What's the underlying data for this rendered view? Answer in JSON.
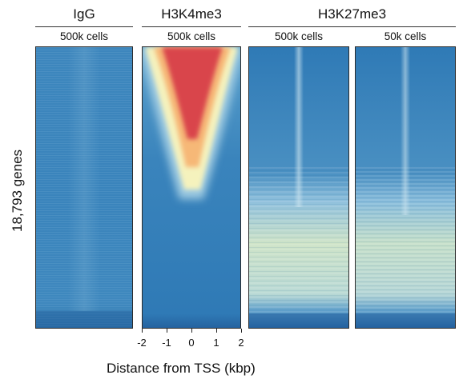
{
  "chart_data": {
    "type": "heatmap",
    "ylabel": "18,793 genes",
    "xlabel": "Distance from TSS (kbp)",
    "xticks": [
      "-2",
      "-1",
      "0",
      "1",
      "2"
    ],
    "xlim": [
      -2,
      2
    ],
    "groups": [
      {
        "name": "IgG",
        "panels": [
          {
            "label": "500k cells",
            "signal": "uniform low (blue)"
          }
        ]
      },
      {
        "name": "H3K4me3",
        "panels": [
          {
            "label": "500k cells",
            "signal": "strong TSS peak (red) narrowing over top ~45% of genes"
          }
        ]
      },
      {
        "name": "H3K27me3",
        "panels": [
          {
            "label": "500k cells",
            "signal": "broad enrichment (yellow) in lower gene rows with faint TSS line"
          },
          {
            "label": "50k cells",
            "signal": "broad enrichment (yellow) in lower gene rows with faint TSS line"
          }
        ]
      }
    ],
    "colorscale": [
      "#2166ac",
      "#4a90c2",
      "#9ecae1",
      "#f7f7c0",
      "#fde28b",
      "#f4a15c",
      "#d73027"
    ]
  }
}
